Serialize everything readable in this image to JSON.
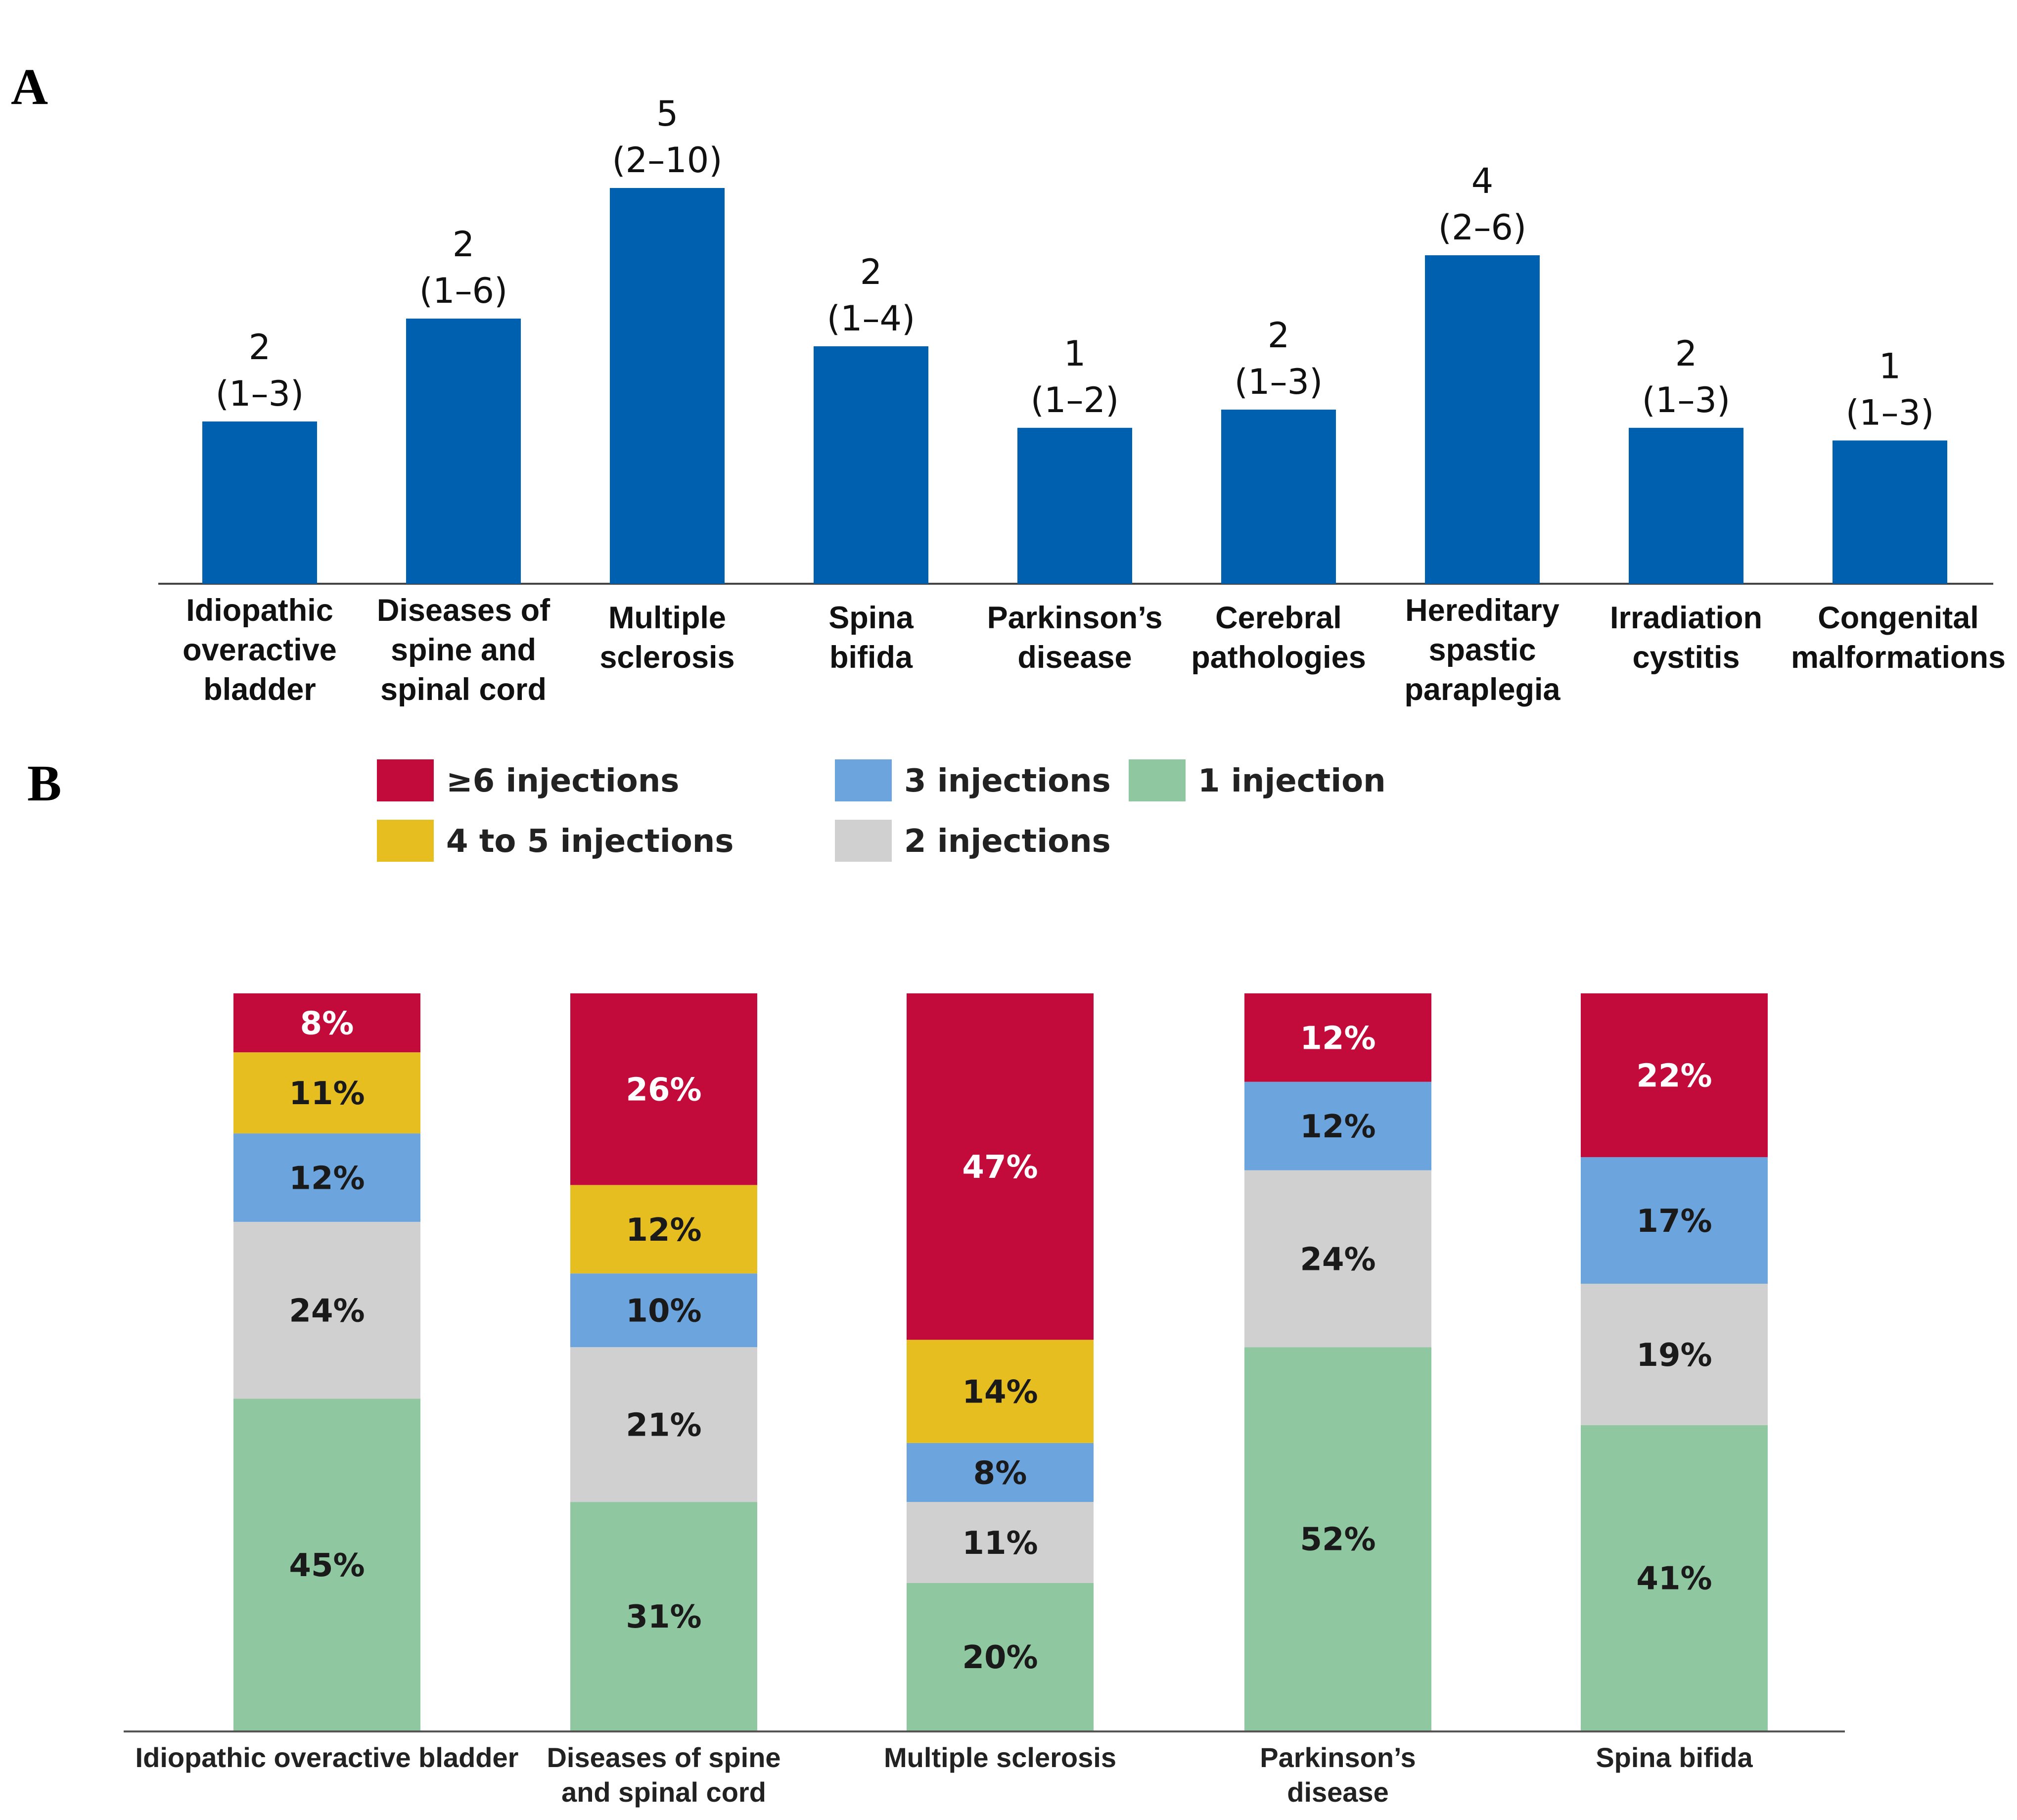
{
  "panels": {
    "a": {
      "letter": "A"
    },
    "b": {
      "letter": "B"
    }
  },
  "chart_data": [
    {
      "type": "bar",
      "panel": "A",
      "title": "",
      "xlabel": "",
      "ylabel": "",
      "ylim": [
        0,
        6
      ],
      "grid": false,
      "bar_color": "#0060B0",
      "categories": [
        [
          "Idiopathic",
          "overactive",
          "bladder"
        ],
        [
          "Diseases of",
          "spine and",
          "spinal cord"
        ],
        [
          "Multiple",
          "sclerosis"
        ],
        [
          "Spina",
          "bifida"
        ],
        [
          "Parkinson’s",
          "disease"
        ],
        [
          "Cerebral",
          "pathologies"
        ],
        [
          "Hereditary",
          "spastic",
          "paraplegia"
        ],
        [
          "Irradiation",
          "cystitis"
        ],
        [
          "Congenital",
          "malformations"
        ]
      ],
      "values": [
        2,
        2,
        5,
        2,
        1,
        2,
        4,
        2,
        1
      ],
      "ranges": [
        "(1–3)",
        "(1–6)",
        "(2–10)",
        "(1–4)",
        "(1–2)",
        "(1–3)",
        "(2–6)",
        "(1–3)",
        "(1–3)"
      ],
      "bar_heights_estimated": [
        2.05,
        3.35,
        5.0,
        3.0,
        1.97,
        2.2,
        4.15,
        1.97,
        1.81
      ],
      "value_labels": [
        "2",
        "2",
        "5",
        "2",
        "1",
        "2",
        "4",
        "2",
        "1"
      ]
    },
    {
      "type": "bar",
      "stacked": true,
      "panel": "B",
      "title": "",
      "xlabel": "",
      "ylabel": "",
      "ylim": [
        0,
        100
      ],
      "legend_position": "top",
      "categories": [
        [
          "Idiopathic overactive bladder"
        ],
        [
          "Diseases of spine",
          "and spinal cord"
        ],
        [
          "Multiple sclerosis"
        ],
        [
          "Parkinson’s",
          "disease"
        ],
        [
          "Spina bifida"
        ]
      ],
      "series": [
        {
          "name": "1 injection",
          "color": "#8FC7A0",
          "text_color": "#1a1a1a",
          "values": [
            45,
            31,
            20,
            52,
            41
          ]
        },
        {
          "name": "2 injections",
          "color": "#D0D0D0",
          "text_color": "#1a1a1a",
          "values": [
            24,
            21,
            11,
            24,
            19
          ]
        },
        {
          "name": "3 injections",
          "color": "#6CA5DE",
          "text_color": "#1a1a1a",
          "values": [
            12,
            10,
            8,
            12,
            17
          ]
        },
        {
          "name": "4 to 5 injections",
          "color": "#E6BE1F",
          "text_color": "#1a1a1a",
          "values": [
            11,
            12,
            14,
            0,
            0
          ]
        },
        {
          "name": "≥6 injections",
          "color": "#C20B3A",
          "text_color": "#ffffff",
          "values": [
            8,
            26,
            47,
            12,
            22
          ]
        }
      ],
      "legend_order": [
        "≥6 injections",
        "3 injections",
        "1 injection",
        "4 to 5 injections",
        "2 injections"
      ]
    }
  ]
}
